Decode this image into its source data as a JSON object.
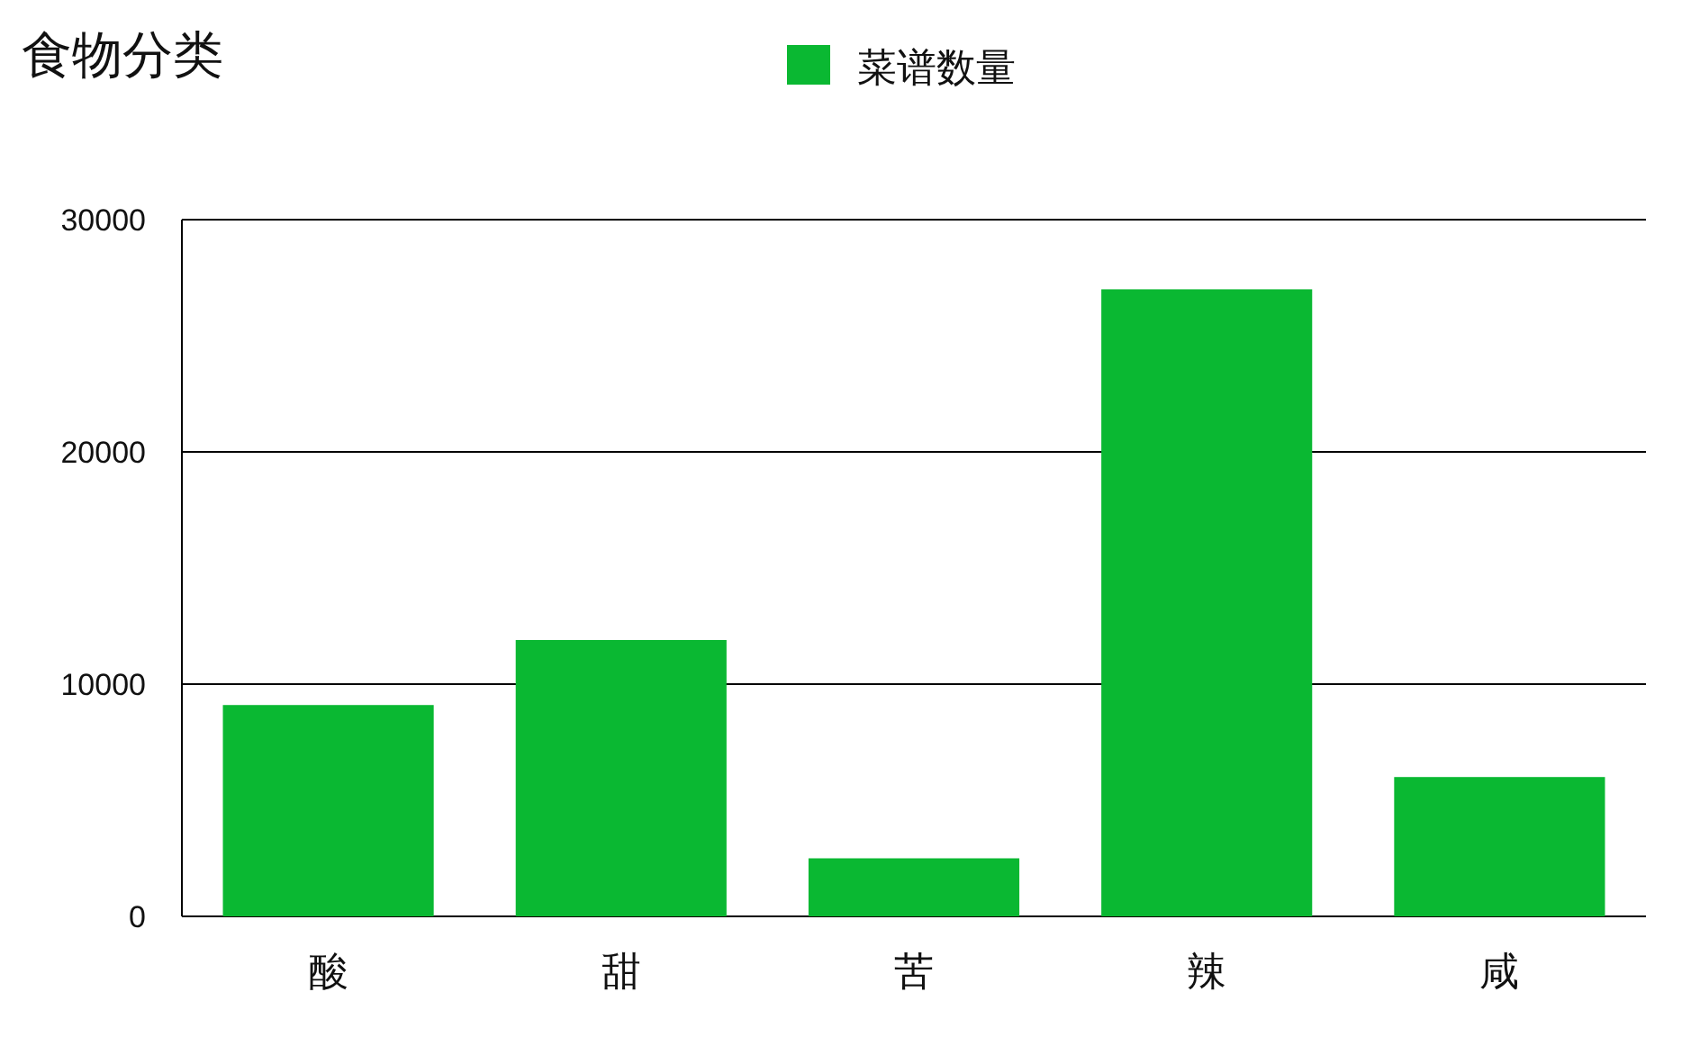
{
  "chart_data": {
    "type": "bar",
    "title": "食物分类",
    "categories": [
      "酸",
      "甜",
      "苦",
      "辣",
      "咸"
    ],
    "series": [
      {
        "name": "菜谱数量",
        "color": "#0ab832",
        "values": [
          9100,
          11900,
          2500,
          27000,
          6000
        ]
      }
    ],
    "ylim": [
      0,
      30000
    ],
    "yticks": [
      0,
      10000,
      20000,
      30000
    ],
    "grid": "y",
    "legend": "top"
  }
}
